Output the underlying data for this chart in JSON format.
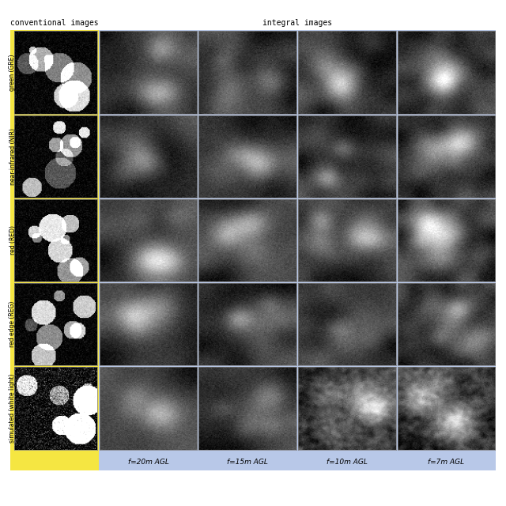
{
  "title_left": "conventional images",
  "title_right": "integral images",
  "row_labels": [
    "green (GRE)",
    "near-infrared (NIR)",
    "red (RED)",
    "red edge (REG)",
    "simulated (white light)"
  ],
  "col_labels_bottom": [
    "f=20m AGL",
    "f=15m AGL",
    "f=10m AGL",
    "f=7m AGL"
  ],
  "left_bg_color": "#f5e642",
  "right_bg_color": "#b8c8e8",
  "header_text_color": "#000000",
  "label_text_color": "#000000",
  "n_rows": 5,
  "n_cols": 5,
  "fig_width": 6.4,
  "fig_height": 6.4,
  "dpi": 100
}
